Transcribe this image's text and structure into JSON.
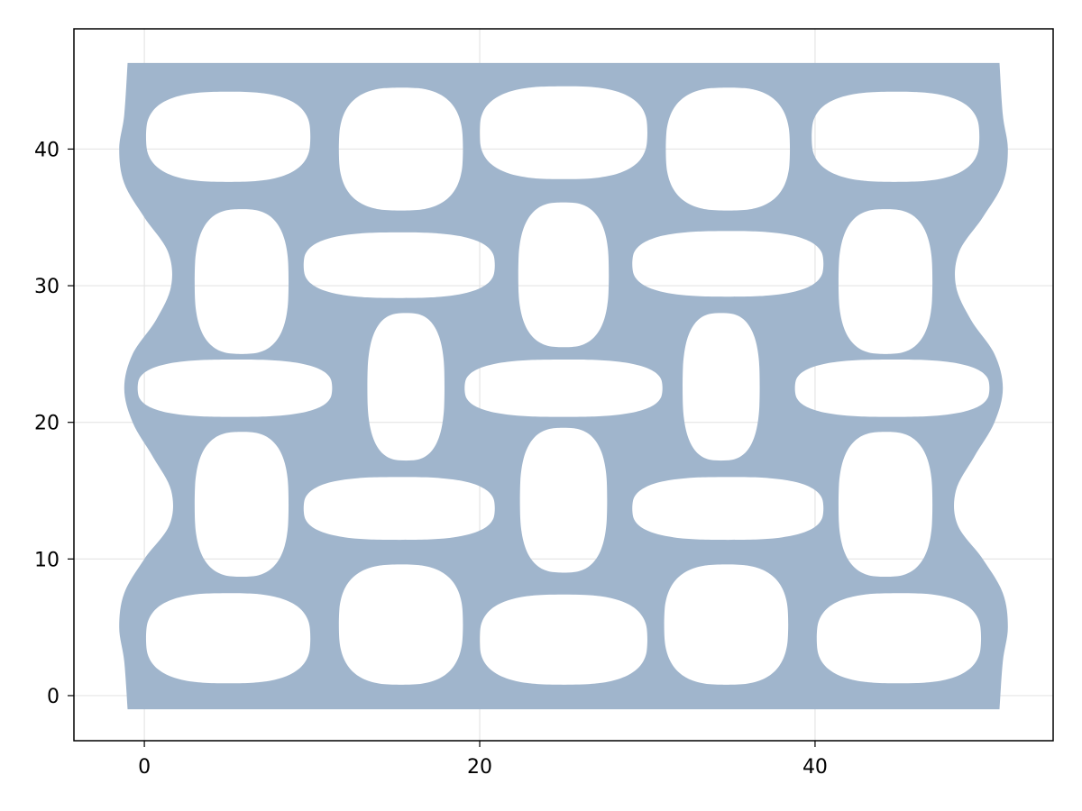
{
  "chart_data": {
    "type": "polygon",
    "title": "",
    "xlabel": "",
    "ylabel": "",
    "xlim": [
      -4.2,
      54.2
    ],
    "ylim": [
      -3.3,
      48.8
    ],
    "x_ticks": [
      0,
      20,
      40
    ],
    "y_ticks": [
      0,
      10,
      20,
      30,
      40
    ],
    "x_tick_labels": [
      "0",
      "20",
      "40"
    ],
    "y_tick_labels": [
      "0",
      "10",
      "20",
      "30",
      "40"
    ],
    "grid": true,
    "legend": "none",
    "fill_color": "#a0b5cc",
    "hole_color": "#ffffff",
    "outer_boundary": {
      "top": 46.3,
      "bottom": -1.0,
      "left_edge": [
        [
          -1.0,
          -1.0
        ],
        [
          -1.2,
          2.5
        ],
        [
          -1.5,
          5.0
        ],
        [
          -1.2,
          7.5
        ],
        [
          0.0,
          10.0
        ],
        [
          1.5,
          12.5
        ],
        [
          1.6,
          15.0
        ],
        [
          0.5,
          17.5
        ],
        [
          -0.7,
          20.0
        ],
        [
          -1.2,
          22.5
        ],
        [
          -0.7,
          25.0
        ],
        [
          0.7,
          27.5
        ],
        [
          1.6,
          30.0
        ],
        [
          1.4,
          32.5
        ],
        [
          0.0,
          35.0
        ],
        [
          -1.2,
          37.5
        ],
        [
          -1.5,
          40.0
        ],
        [
          -1.2,
          42.5
        ],
        [
          -1.0,
          46.3
        ]
      ],
      "right_edge": [
        [
          51.0,
          -1.0
        ],
        [
          51.2,
          2.5
        ],
        [
          51.5,
          5.0
        ],
        [
          51.2,
          7.5
        ],
        [
          50.0,
          10.0
        ],
        [
          48.5,
          12.5
        ],
        [
          48.4,
          15.0
        ],
        [
          49.5,
          17.5
        ],
        [
          50.7,
          20.0
        ],
        [
          51.2,
          22.5
        ],
        [
          50.7,
          25.0
        ],
        [
          49.3,
          27.5
        ],
        [
          48.4,
          30.0
        ],
        [
          48.6,
          32.5
        ],
        [
          50.0,
          35.0
        ],
        [
          51.2,
          37.5
        ],
        [
          51.5,
          40.0
        ],
        [
          51.2,
          42.5
        ],
        [
          51.0,
          46.3
        ]
      ]
    },
    "holes": [
      {
        "cx": 5.0,
        "cy": 40.9,
        "rx": 4.9,
        "ry": 3.3,
        "orientation": "horizontal"
      },
      {
        "cx": 15.3,
        "cy": 40.0,
        "rx": 3.7,
        "ry": 4.5,
        "orientation": "vertical"
      },
      {
        "cx": 25.0,
        "cy": 41.2,
        "rx": 5.0,
        "ry": 3.4,
        "orientation": "horizontal"
      },
      {
        "cx": 34.8,
        "cy": 40.0,
        "rx": 3.7,
        "ry": 4.5,
        "orientation": "vertical"
      },
      {
        "cx": 44.8,
        "cy": 40.9,
        "rx": 5.0,
        "ry": 3.3,
        "orientation": "horizontal"
      },
      {
        "cx": 5.8,
        "cy": 30.3,
        "rx": 2.8,
        "ry": 5.3,
        "orientation": "vertical"
      },
      {
        "cx": 15.2,
        "cy": 31.5,
        "rx": 5.7,
        "ry": 2.4,
        "orientation": "horizontal"
      },
      {
        "cx": 25.0,
        "cy": 30.8,
        "rx": 2.7,
        "ry": 5.3,
        "orientation": "vertical"
      },
      {
        "cx": 34.8,
        "cy": 31.6,
        "rx": 5.7,
        "ry": 2.4,
        "orientation": "horizontal"
      },
      {
        "cx": 44.2,
        "cy": 30.3,
        "rx": 2.8,
        "ry": 5.3,
        "orientation": "vertical"
      },
      {
        "cx": 5.4,
        "cy": 22.5,
        "rx": 5.8,
        "ry": 2.1,
        "orientation": "horizontal"
      },
      {
        "cx": 15.6,
        "cy": 22.6,
        "rx": 2.3,
        "ry": 5.4,
        "orientation": "vertical"
      },
      {
        "cx": 25.0,
        "cy": 22.5,
        "rx": 5.9,
        "ry": 2.1,
        "orientation": "horizontal"
      },
      {
        "cx": 34.4,
        "cy": 22.6,
        "rx": 2.3,
        "ry": 5.4,
        "orientation": "vertical"
      },
      {
        "cx": 44.6,
        "cy": 22.5,
        "rx": 5.8,
        "ry": 2.1,
        "orientation": "horizontal"
      },
      {
        "cx": 5.8,
        "cy": 14.0,
        "rx": 2.8,
        "ry": 5.3,
        "orientation": "vertical"
      },
      {
        "cx": 15.2,
        "cy": 13.7,
        "rx": 5.7,
        "ry": 2.3,
        "orientation": "horizontal"
      },
      {
        "cx": 25.0,
        "cy": 14.3,
        "rx": 2.6,
        "ry": 5.3,
        "orientation": "vertical"
      },
      {
        "cx": 34.8,
        "cy": 13.7,
        "rx": 5.7,
        "ry": 2.3,
        "orientation": "horizontal"
      },
      {
        "cx": 44.2,
        "cy": 14.0,
        "rx": 2.8,
        "ry": 5.3,
        "orientation": "vertical"
      },
      {
        "cx": 5.0,
        "cy": 4.2,
        "rx": 4.9,
        "ry": 3.3,
        "orientation": "horizontal"
      },
      {
        "cx": 15.3,
        "cy": 5.2,
        "rx": 3.7,
        "ry": 4.4,
        "orientation": "vertical"
      },
      {
        "cx": 25.0,
        "cy": 4.1,
        "rx": 5.0,
        "ry": 3.3,
        "orientation": "horizontal"
      },
      {
        "cx": 34.7,
        "cy": 5.2,
        "rx": 3.7,
        "ry": 4.4,
        "orientation": "vertical"
      },
      {
        "cx": 45.0,
        "cy": 4.2,
        "rx": 4.9,
        "ry": 3.3,
        "orientation": "horizontal"
      }
    ]
  }
}
